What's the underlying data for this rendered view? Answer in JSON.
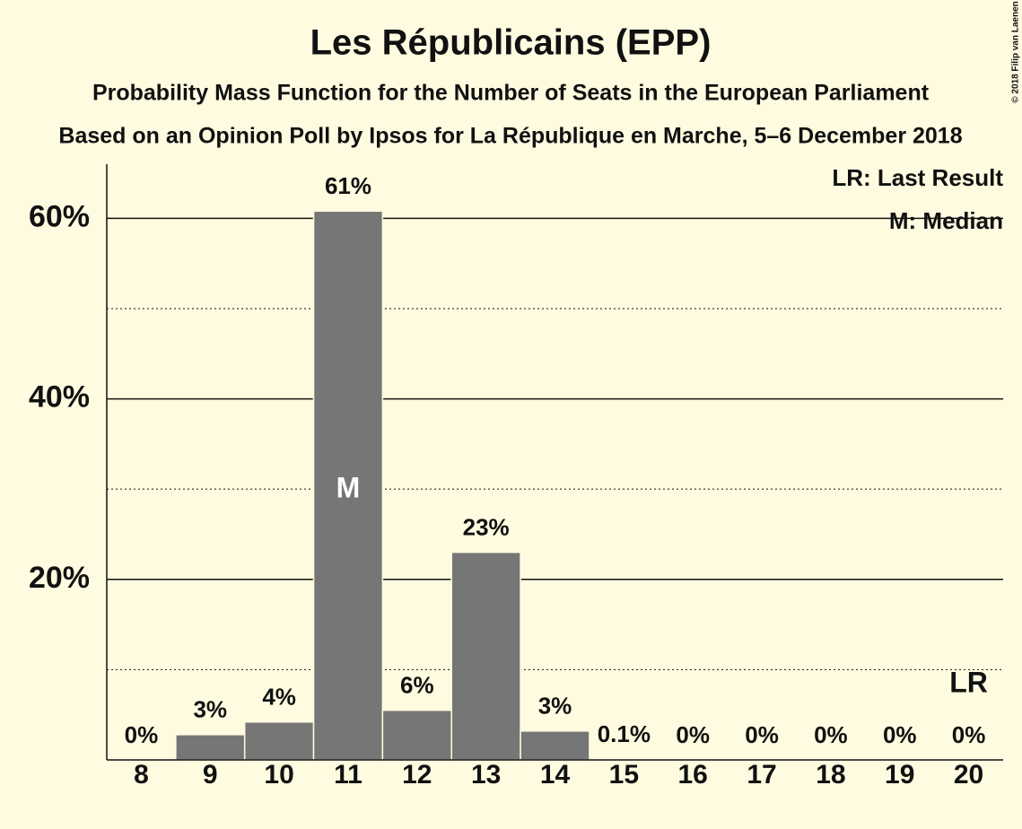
{
  "chart_data": {
    "type": "bar",
    "title": "Les Républicains (EPP)",
    "subtitle": [
      "Probability Mass Function for the Number of Seats in the European Parliament",
      "Based on an Opinion Poll by Ipsos for La République en Marche, 5–6 December 2018"
    ],
    "copyright": "© 2018 Filip van Laenen",
    "categories": [
      "8",
      "9",
      "10",
      "11",
      "12",
      "13",
      "14",
      "15",
      "16",
      "17",
      "18",
      "19",
      "20"
    ],
    "values": [
      0,
      2.8,
      4.2,
      60.8,
      5.5,
      23,
      3.2,
      0.1,
      0,
      0,
      0,
      0,
      0
    ],
    "value_labels": [
      "0%",
      "3%",
      "4%",
      "61%",
      "6%",
      "23%",
      "3%",
      "0.1%",
      "0%",
      "0%",
      "0%",
      "0%",
      "0%"
    ],
    "color": "#767676",
    "ylim": [
      0,
      66
    ],
    "yticks": [
      {
        "value": 20,
        "label": "20%"
      },
      {
        "value": 40,
        "label": "40%"
      },
      {
        "value": 60,
        "label": "60%"
      }
    ],
    "minor_yticks": [
      10,
      30,
      50
    ],
    "grid": true,
    "legend": [
      "LR: Last Result",
      "M: Median"
    ],
    "median": {
      "category": "11",
      "label": "M"
    },
    "last_result": {
      "category": "20",
      "label": "LR"
    }
  }
}
